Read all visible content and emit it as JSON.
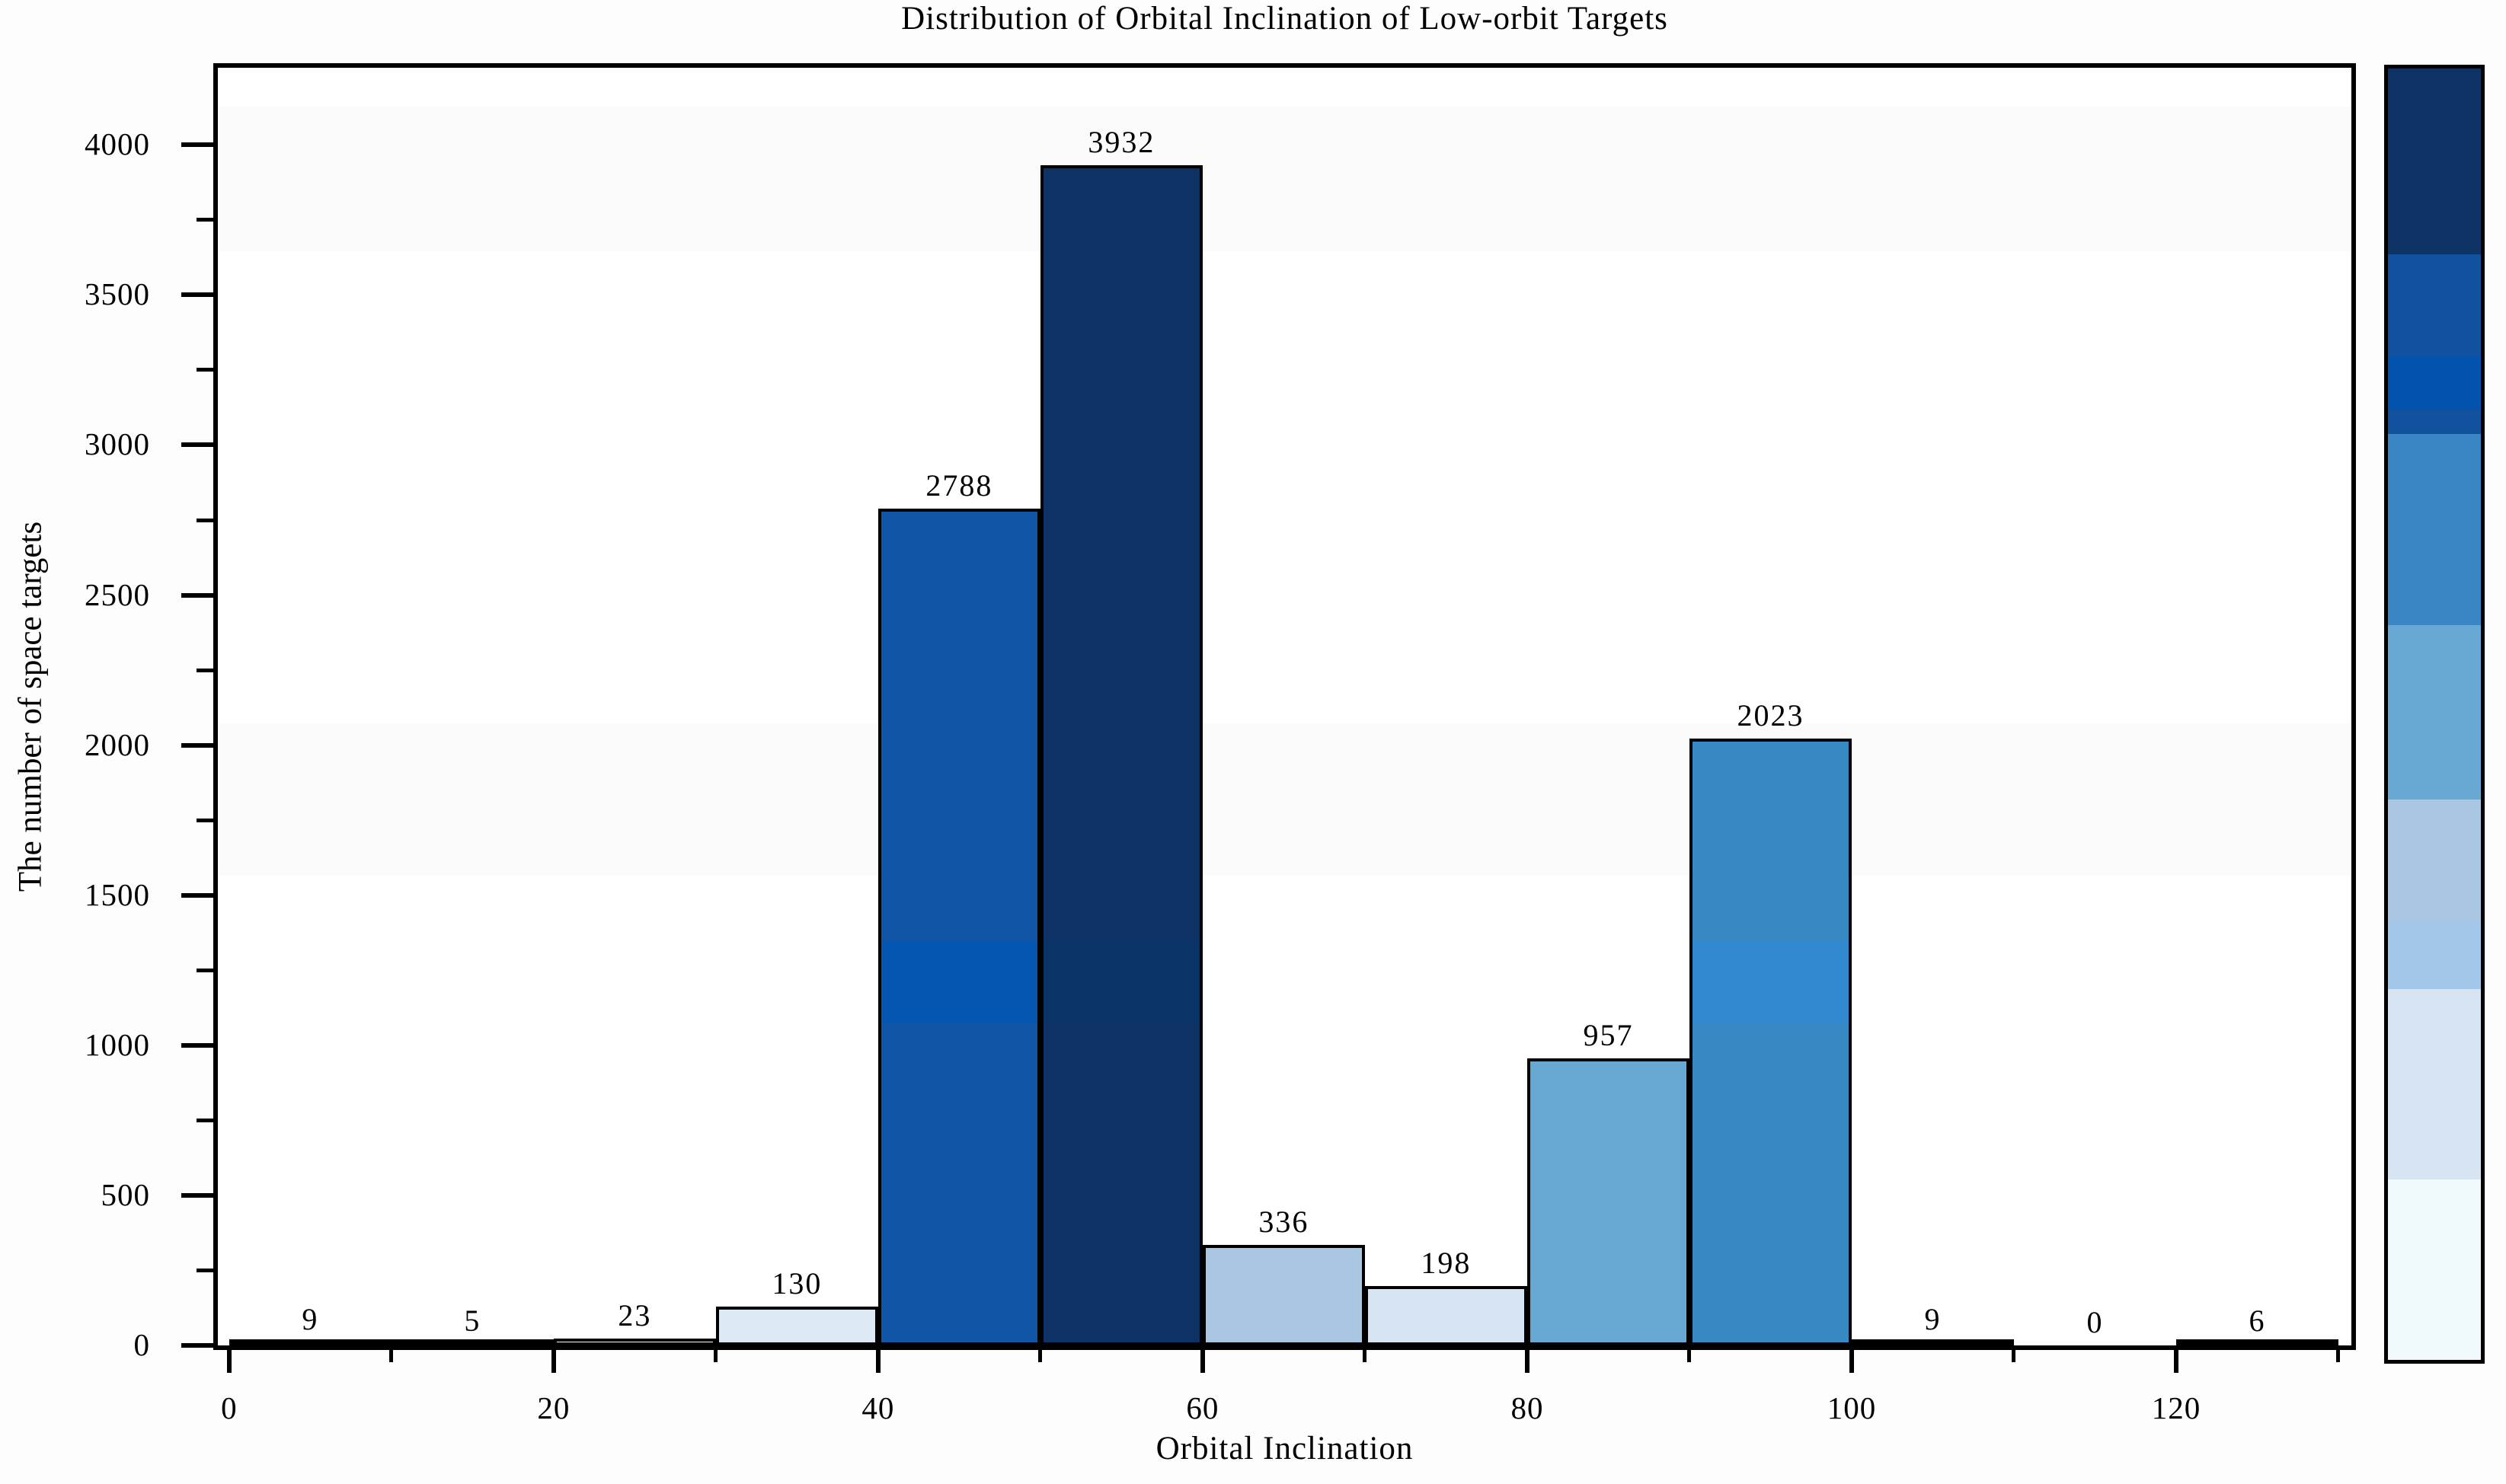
{
  "title": "Distribution of Orbital Inclination of Low-orbit Targets",
  "chart_data": {
    "type": "bar",
    "subtype": "histogram",
    "title": "Distribution of Orbital Inclination of Low-orbit Targets",
    "xlabel": "Orbital Inclination",
    "ylabel": "The number of space targets",
    "bin_width": 10,
    "bin_edges": [
      0,
      10,
      20,
      30,
      40,
      50,
      60,
      70,
      80,
      90,
      100,
      110,
      120,
      130
    ],
    "categories": [
      "0-10",
      "10-20",
      "20-30",
      "30-40",
      "40-50",
      "50-60",
      "60-70",
      "70-80",
      "80-90",
      "90-100",
      "100-110",
      "110-120",
      "120-130"
    ],
    "values": [
      9,
      5,
      23,
      130,
      2788,
      3932,
      336,
      198,
      957,
      2023,
      9,
      0,
      6
    ],
    "bar_labels": [
      "9",
      "5",
      "23",
      "130",
      "2788",
      "3932",
      "336",
      "198",
      "957",
      "2023",
      "9",
      "0",
      "6"
    ],
    "bar_colors": [
      "#ffffff",
      "#ffffff",
      "#fdfeff",
      "#dde8f5",
      "#1156a6",
      "#0e3263",
      "#a9c6e3",
      "#d7e5f3",
      "#68a9d4",
      "#3888c4",
      "#ffffff",
      "#ffffff",
      "#ffffff"
    ],
    "bar_edge_color": "#000000",
    "xlim": [
      -0.7,
      130.8
    ],
    "ylim": [
      0,
      4257
    ],
    "xticks_major": [
      0,
      20,
      40,
      60,
      80,
      100,
      120
    ],
    "xticks_minor": [
      10,
      30,
      50,
      70,
      90,
      110,
      130
    ],
    "yticks_major": [
      0,
      500,
      1000,
      1500,
      2000,
      2500,
      3000,
      3500,
      4000
    ],
    "yticks_minor": [
      250,
      750,
      1250,
      1750,
      2250,
      2750,
      3250,
      3750
    ],
    "grid": false,
    "legend": "none",
    "colorbar": {
      "position": "right",
      "segments_top_to_bottom": [
        {
          "color": "#0e3263",
          "frac": 0.144
        },
        {
          "color": "#11529f",
          "frac": 0.079
        },
        {
          "color": "#0353ae",
          "frac": 0.041
        },
        {
          "color": "#11519e",
          "frac": 0.019
        },
        {
          "color": "#3a86c4",
          "frac": 0.148
        },
        {
          "color": "#68a9d4",
          "frac": 0.135
        },
        {
          "color": "#a9c6e2",
          "frac": 0.094
        },
        {
          "color": "#a3c7eb",
          "frac": 0.053
        },
        {
          "color": "#d7e5f3",
          "frac": 0.147
        },
        {
          "color": "#f0f9fc",
          "frac": 0.14
        }
      ]
    }
  }
}
